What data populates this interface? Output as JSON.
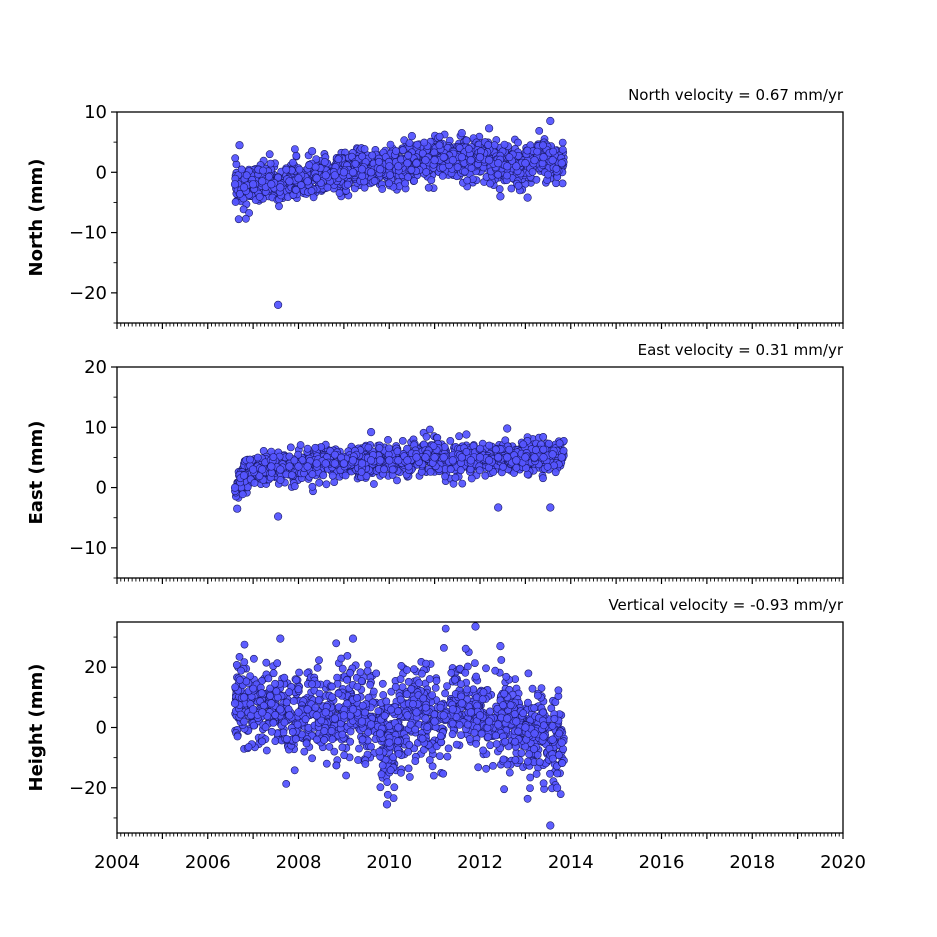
{
  "chart_data": [
    {
      "type": "scatter",
      "ylabel": "North (mm)",
      "annotation": "North velocity = 0.67 mm/yr",
      "xlim": [
        2004,
        2020
      ],
      "ylim": [
        -25,
        10
      ],
      "yticks": [
        10,
        0,
        -10,
        -20
      ],
      "ytick_labels": [
        "10",
        "0",
        "−10",
        "−20"
      ],
      "velocity_mm_per_yr": 0.67,
      "x": [
        2006.6,
        2006.8,
        2007.0,
        2007.2,
        2007.4,
        2007.6,
        2007.8,
        2008.0,
        2008.2,
        2008.4,
        2008.6,
        2008.8,
        2009.0,
        2009.2,
        2009.4,
        2009.6,
        2009.8,
        2010.0,
        2010.2,
        2010.4,
        2010.6,
        2010.8,
        2011.0,
        2011.2,
        2011.4,
        2011.6,
        2011.8,
        2012.0,
        2012.2,
        2012.4,
        2012.6,
        2012.8,
        2013.0,
        2013.2,
        2013.4,
        2013.6,
        2013.8,
        2006.7,
        2007.55,
        2008.3,
        2010.5,
        2011.6,
        2012.2,
        2013.55,
        2013.05,
        2012.45
      ],
      "y": [
        -2.0,
        -2.5,
        -2.0,
        -1.5,
        -2.0,
        -2.5,
        -1.5,
        -1.0,
        -1.5,
        -1.0,
        -0.5,
        -0.5,
        0.0,
        0.0,
        0.5,
        0.0,
        0.5,
        1.0,
        1.0,
        1.5,
        1.5,
        2.0,
        2.0,
        2.5,
        2.0,
        2.5,
        2.0,
        2.5,
        2.0,
        1.5,
        1.0,
        1.0,
        1.5,
        2.0,
        2.5,
        2.0,
        1.5,
        4.5,
        -22.0,
        3.5,
        6.0,
        6.5,
        7.3,
        8.5,
        -4.2,
        -4.0
      ]
    },
    {
      "type": "scatter",
      "ylabel": "East (mm)",
      "annotation": "East velocity = 0.31 mm/yr",
      "xlim": [
        2004,
        2020
      ],
      "ylim": [
        -15,
        20
      ],
      "yticks": [
        20,
        10,
        0,
        -10
      ],
      "ytick_labels": [
        "20",
        "10",
        "0",
        "−10"
      ],
      "velocity_mm_per_yr": 0.31,
      "x": [
        2006.6,
        2006.8,
        2007.0,
        2007.2,
        2007.4,
        2007.6,
        2007.8,
        2008.0,
        2008.2,
        2008.4,
        2008.6,
        2008.8,
        2009.0,
        2009.2,
        2009.4,
        2009.6,
        2009.8,
        2010.0,
        2010.2,
        2010.4,
        2010.6,
        2010.8,
        2011.0,
        2011.2,
        2011.4,
        2011.6,
        2011.8,
        2012.0,
        2012.2,
        2012.4,
        2012.6,
        2012.8,
        2013.0,
        2013.2,
        2013.4,
        2013.6,
        2013.8,
        2006.65,
        2007.55,
        2009.6,
        2011.7,
        2012.4,
        2012.6,
        2013.55
      ],
      "y": [
        0.0,
        2.0,
        3.0,
        3.0,
        3.5,
        3.0,
        3.5,
        3.5,
        3.5,
        4.0,
        4.0,
        4.0,
        4.0,
        4.5,
        4.0,
        4.5,
        4.5,
        4.5,
        4.5,
        4.5,
        5.0,
        5.0,
        5.0,
        5.0,
        4.5,
        5.0,
        4.5,
        5.0,
        4.5,
        5.0,
        5.0,
        4.5,
        5.0,
        5.0,
        5.0,
        5.5,
        5.0,
        -3.5,
        -4.8,
        9.2,
        8.8,
        -3.3,
        9.8,
        -3.3
      ]
    },
    {
      "type": "scatter",
      "ylabel": "Height (mm)",
      "annotation": "Vertical velocity = -0.93 mm/yr",
      "xlim": [
        2004,
        2020
      ],
      "ylim": [
        -35,
        35
      ],
      "yticks": [
        20,
        0,
        -20
      ],
      "ytick_labels": [
        "20",
        "0",
        "−20"
      ],
      "xticks": [
        2004,
        2006,
        2008,
        2010,
        2012,
        2014,
        2016,
        2018,
        2020
      ],
      "xtick_labels": [
        "2004",
        "2006",
        "2008",
        "2010",
        "2012",
        "2014",
        "2016",
        "2018",
        "2020"
      ],
      "velocity_mm_per_yr": -0.93,
      "x": [
        2006.6,
        2006.8,
        2007.0,
        2007.2,
        2007.4,
        2007.6,
        2007.8,
        2008.0,
        2008.2,
        2008.4,
        2008.6,
        2008.8,
        2009.0,
        2009.2,
        2009.4,
        2009.6,
        2009.8,
        2010.0,
        2010.2,
        2010.4,
        2010.6,
        2010.8,
        2011.0,
        2011.2,
        2011.4,
        2011.6,
        2011.8,
        2012.0,
        2012.2,
        2012.4,
        2012.6,
        2012.8,
        2013.0,
        2013.2,
        2013.4,
        2013.6,
        2013.8,
        2011.9,
        2009.2,
        2009.95,
        2013.55,
        2012.45,
        2007.6,
        2013.7
      ],
      "y": [
        8,
        10,
        6,
        5,
        8,
        6,
        4,
        5,
        6,
        4,
        5,
        3,
        4,
        6,
        2,
        1,
        -2,
        -5,
        0,
        4,
        5,
        3,
        2,
        4,
        6,
        8,
        5,
        4,
        2,
        1,
        3,
        2,
        0,
        -2,
        -3,
        -4,
        -5,
        33.5,
        29.5,
        -25.5,
        -32.5,
        27,
        29.5,
        -20
      ]
    }
  ]
}
